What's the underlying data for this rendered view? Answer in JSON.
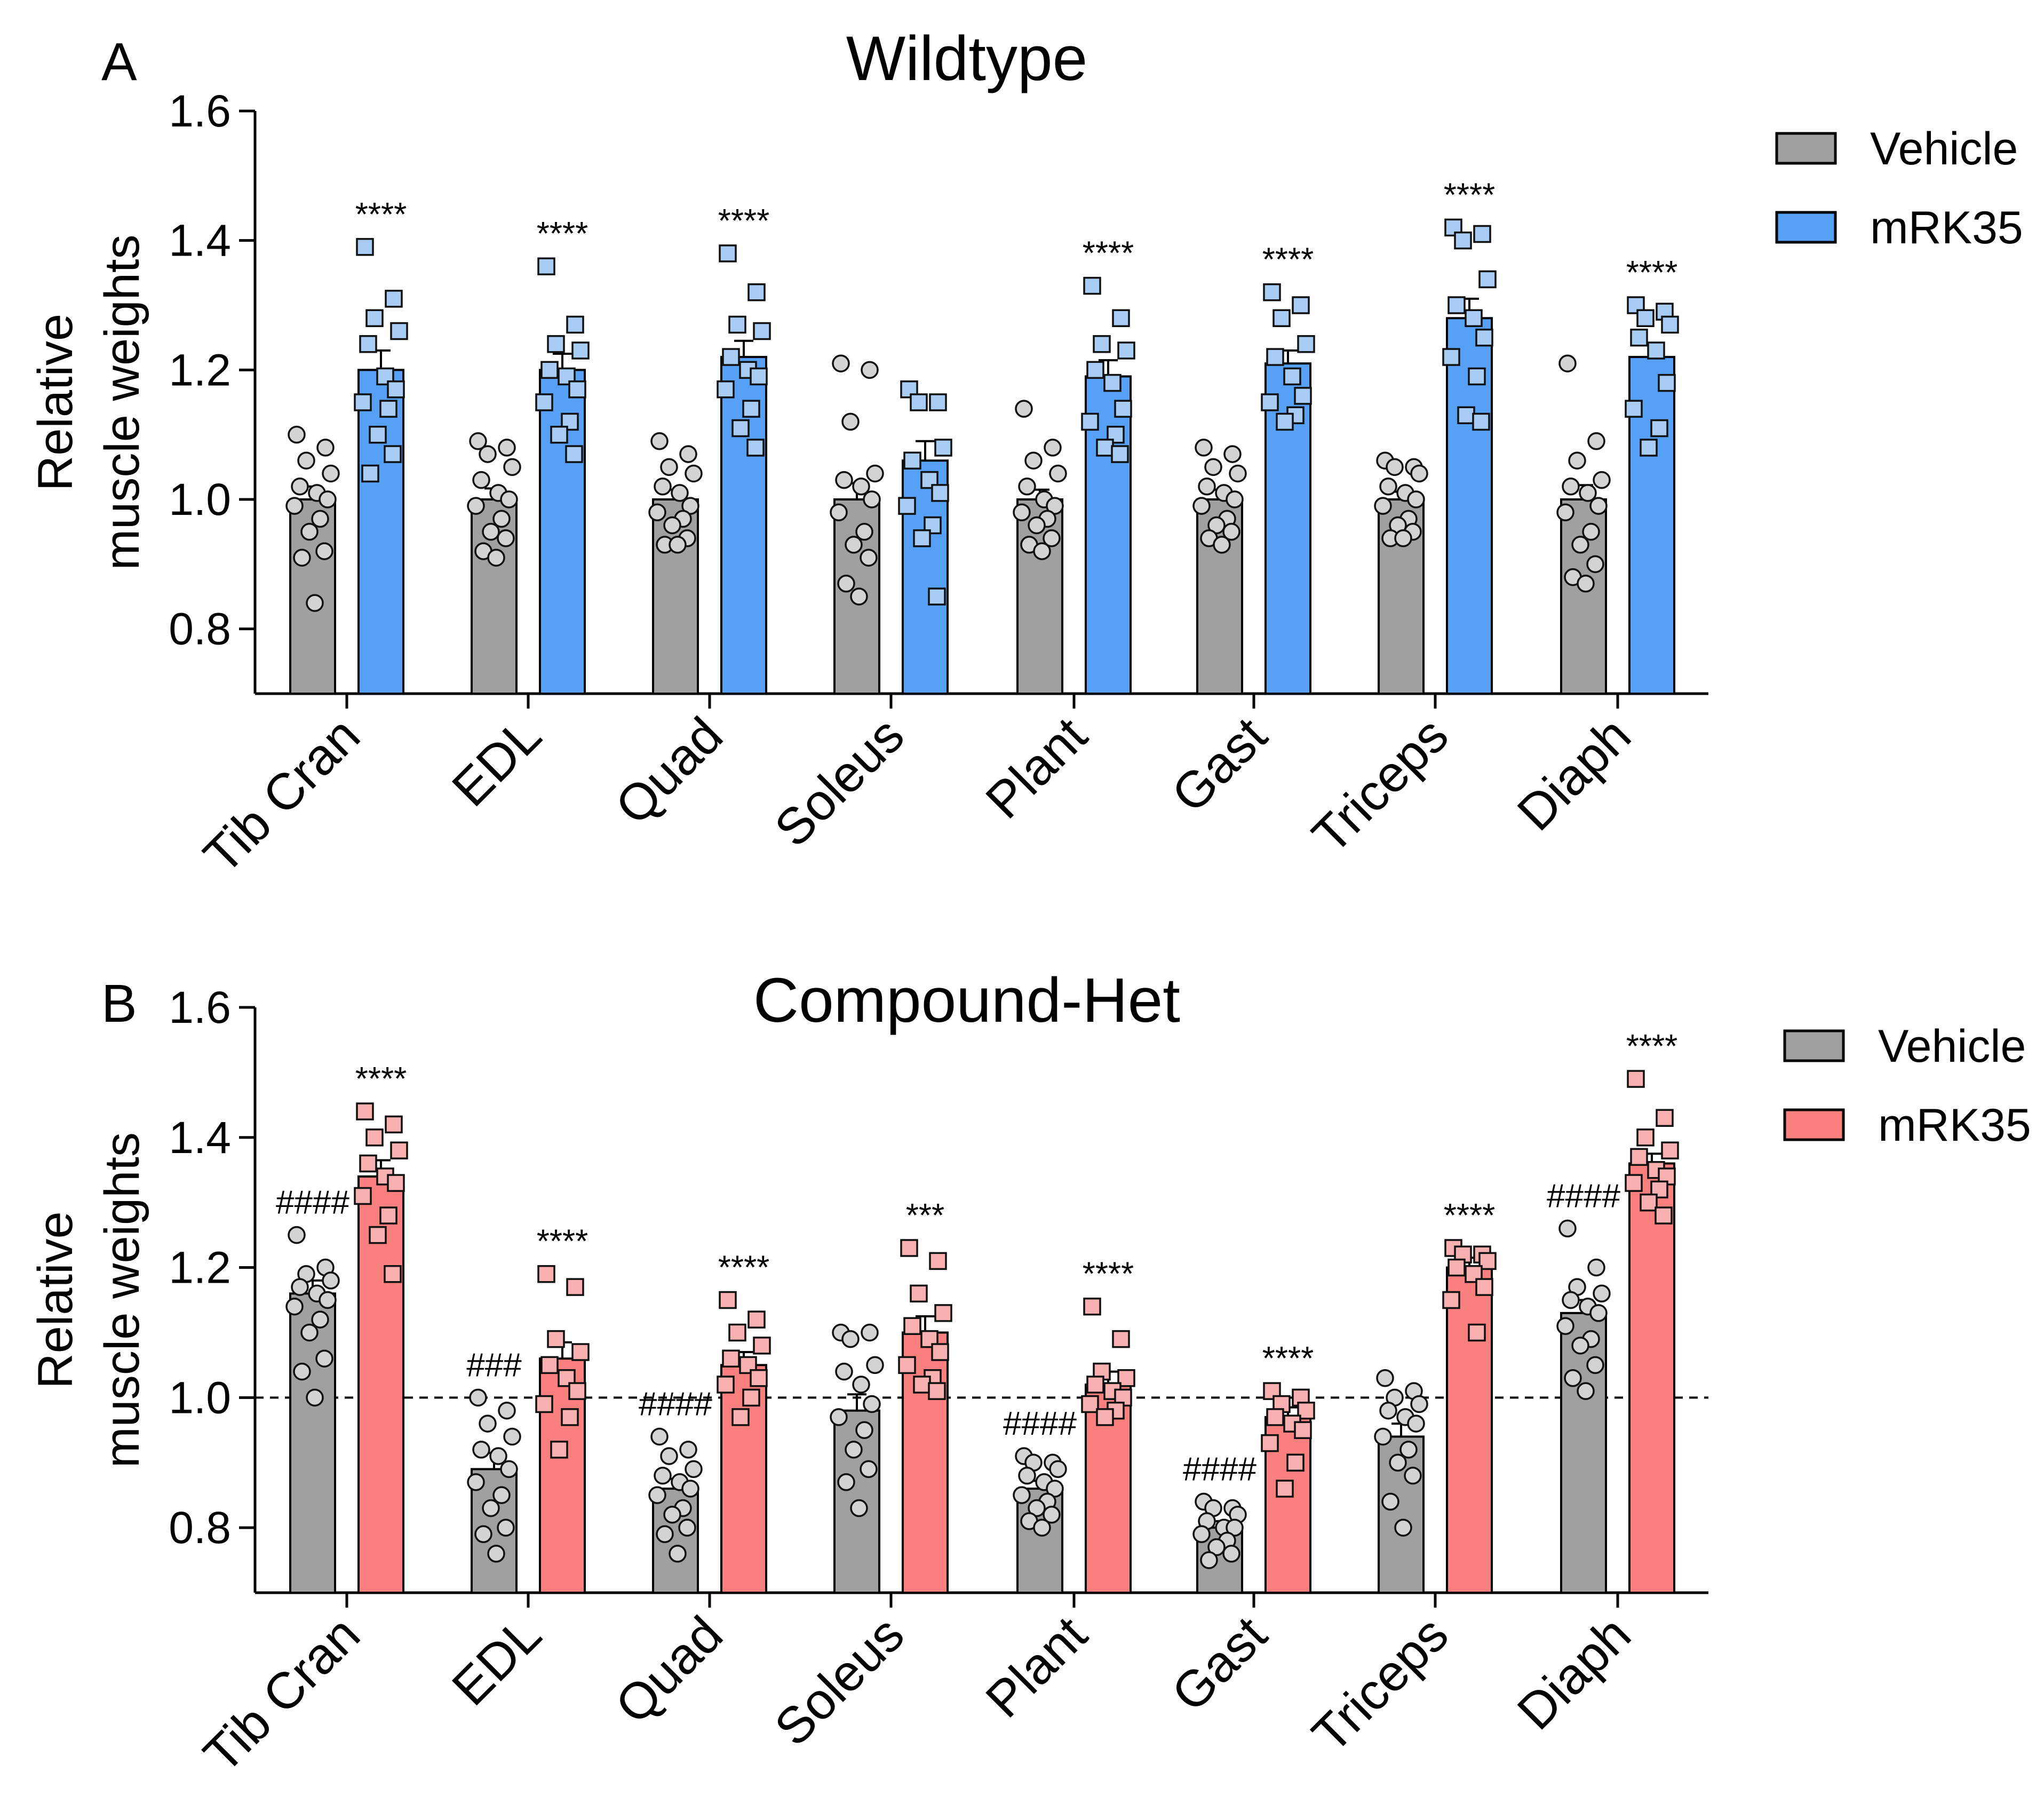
{
  "chart_data": [
    {
      "type": "bar",
      "panel_letter": "A",
      "title": "Wildtype",
      "ylabel_lines": [
        "Relative",
        "muscle weights"
      ],
      "ylim": [
        0.7,
        1.6
      ],
      "yticks": [
        "0.8",
        "1.0",
        "1.2",
        "1.4",
        "1.6"
      ],
      "ytick_values": [
        0.8,
        1.0,
        1.2,
        1.4,
        1.6
      ],
      "reference_line": null,
      "categories": [
        "Tib Cran",
        "EDL",
        "Quad",
        "Soleus",
        "Plant",
        "Gast",
        "Triceps",
        "Diaph"
      ],
      "series": [
        {
          "name": "Vehicle",
          "color": "#a0a0a0",
          "point_color": "#d3d3d3",
          "marker": "circle",
          "values": [
            1.0,
            1.0,
            1.0,
            1.0,
            1.0,
            1.0,
            1.0,
            1.0
          ],
          "sem": [
            0.02,
            0.017,
            0.015,
            0.025,
            0.015,
            0.015,
            0.012,
            0.022
          ],
          "points": [
            [
              1.1,
              1.08,
              1.06,
              1.04,
              1.02,
              1.01,
              1.0,
              0.99,
              0.97,
              0.95,
              0.92,
              0.91,
              0.84
            ],
            [
              1.09,
              1.08,
              1.07,
              1.05,
              1.03,
              1.01,
              1.0,
              0.99,
              0.97,
              0.95,
              0.94,
              0.92,
              0.91
            ],
            [
              1.09,
              1.07,
              1.05,
              1.04,
              1.02,
              1.01,
              0.99,
              0.98,
              0.97,
              0.96,
              0.94,
              0.93,
              0.93
            ],
            [
              1.21,
              1.2,
              1.12,
              1.04,
              1.03,
              1.02,
              1.0,
              0.98,
              0.95,
              0.93,
              0.91,
              0.87,
              0.85
            ],
            [
              1.14,
              1.08,
              1.06,
              1.04,
              1.02,
              1.0,
              0.99,
              0.98,
              0.97,
              0.96,
              0.94,
              0.93,
              0.92
            ],
            [
              1.08,
              1.07,
              1.05,
              1.04,
              1.02,
              1.01,
              1.0,
              0.99,
              0.97,
              0.96,
              0.95,
              0.94,
              0.93
            ],
            [
              1.06,
              1.05,
              1.05,
              1.04,
              1.02,
              1.01,
              1.0,
              0.99,
              0.97,
              0.96,
              0.95,
              0.94,
              0.94
            ],
            [
              1.21,
              1.09,
              1.06,
              1.03,
              1.02,
              1.01,
              0.99,
              0.98,
              0.95,
              0.93,
              0.9,
              0.88,
              0.87
            ]
          ]
        },
        {
          "name": "mRK35",
          "color": "#56a0f6",
          "point_color": "#a9ccf4",
          "marker": "square",
          "values": [
            1.2,
            1.2,
            1.22,
            1.06,
            1.19,
            1.21,
            1.28,
            1.22
          ],
          "sem": [
            0.03,
            0.025,
            0.025,
            0.03,
            0.025,
            0.02,
            0.03,
            0.02
          ],
          "points": [
            [
              1.39,
              1.31,
              1.28,
              1.26,
              1.24,
              1.19,
              1.17,
              1.15,
              1.14,
              1.1,
              1.07,
              1.04
            ],
            [
              1.36,
              1.27,
              1.24,
              1.23,
              1.2,
              1.19,
              1.17,
              1.15,
              1.12,
              1.1,
              1.07
            ],
            [
              1.38,
              1.32,
              1.27,
              1.26,
              1.22,
              1.2,
              1.19,
              1.17,
              1.14,
              1.11,
              1.08
            ],
            [
              1.17,
              1.15,
              1.15,
              1.08,
              1.06,
              1.03,
              1.01,
              0.99,
              0.96,
              0.94,
              0.85
            ],
            [
              1.33,
              1.28,
              1.24,
              1.23,
              1.2,
              1.18,
              1.14,
              1.12,
              1.1,
              1.08,
              1.07
            ],
            [
              1.32,
              1.3,
              1.28,
              1.24,
              1.22,
              1.19,
              1.16,
              1.15,
              1.13,
              1.12
            ],
            [
              1.42,
              1.41,
              1.4,
              1.34,
              1.3,
              1.28,
              1.25,
              1.22,
              1.19,
              1.13,
              1.12
            ],
            [
              1.3,
              1.29,
              1.28,
              1.27,
              1.25,
              1.23,
              1.18,
              1.14,
              1.11,
              1.08
            ]
          ]
        }
      ],
      "annotations": [
        {
          "category": 0,
          "series": 1,
          "text": "****"
        },
        {
          "category": 1,
          "series": 1,
          "text": "****"
        },
        {
          "category": 2,
          "series": 1,
          "text": "****"
        },
        {
          "category": 4,
          "series": 1,
          "text": "****"
        },
        {
          "category": 5,
          "series": 1,
          "text": "****"
        },
        {
          "category": 6,
          "series": 1,
          "text": "****"
        },
        {
          "category": 7,
          "series": 1,
          "text": "****"
        }
      ],
      "legend_position": "top-right"
    },
    {
      "type": "bar",
      "panel_letter": "B",
      "title": "Compound-Het",
      "ylabel_lines": [
        "Relative",
        "muscle weights"
      ],
      "ylim": [
        0.7,
        1.6
      ],
      "yticks": [
        "0.8",
        "1.0",
        "1.2",
        "1.4",
        "1.6"
      ],
      "ytick_values": [
        0.8,
        1.0,
        1.2,
        1.4,
        1.6
      ],
      "reference_line": 1.0,
      "categories": [
        "Tib Cran",
        "EDL",
        "Quad",
        "Soleus",
        "Plant",
        "Gast",
        "Triceps",
        "Diaph"
      ],
      "series": [
        {
          "name": "Vehicle",
          "color": "#a0a0a0",
          "point_color": "#d3d3d3",
          "marker": "circle",
          "values": [
            1.16,
            0.89,
            0.86,
            0.98,
            0.86,
            0.8,
            0.94,
            1.13
          ],
          "sem": [
            0.02,
            0.025,
            0.015,
            0.025,
            0.012,
            0.01,
            0.02,
            0.02
          ],
          "points": [
            [
              1.25,
              1.2,
              1.19,
              1.18,
              1.17,
              1.16,
              1.15,
              1.14,
              1.12,
              1.1,
              1.06,
              1.04,
              1.0
            ],
            [
              1.0,
              0.98,
              0.96,
              0.94,
              0.92,
              0.91,
              0.89,
              0.87,
              0.85,
              0.83,
              0.8,
              0.79,
              0.76
            ],
            [
              0.94,
              0.92,
              0.91,
              0.89,
              0.88,
              0.87,
              0.86,
              0.85,
              0.83,
              0.82,
              0.8,
              0.79,
              0.76
            ],
            [
              1.1,
              1.1,
              1.09,
              1.05,
              1.04,
              1.02,
              0.99,
              0.97,
              0.95,
              0.92,
              0.89,
              0.87,
              0.83
            ],
            [
              0.91,
              0.9,
              0.9,
              0.89,
              0.88,
              0.87,
              0.86,
              0.85,
              0.84,
              0.83,
              0.82,
              0.81,
              0.8
            ],
            [
              0.84,
              0.83,
              0.83,
              0.82,
              0.81,
              0.8,
              0.8,
              0.79,
              0.78,
              0.77,
              0.76,
              0.75
            ],
            [
              1.03,
              1.01,
              1.0,
              0.99,
              0.98,
              0.97,
              0.96,
              0.94,
              0.92,
              0.9,
              0.88,
              0.84,
              0.8
            ],
            [
              1.26,
              1.2,
              1.17,
              1.16,
              1.15,
              1.14,
              1.13,
              1.11,
              1.09,
              1.08,
              1.05,
              1.03,
              1.01
            ]
          ]
        },
        {
          "name": "mRK35",
          "color": "#fa8080",
          "point_color": "#f8b0b0",
          "marker": "square",
          "values": [
            1.34,
            1.06,
            1.05,
            1.1,
            1.02,
            0.97,
            1.2,
            1.36
          ],
          "sem": [
            0.025,
            0.025,
            0.02,
            0.025,
            0.02,
            0.015,
            0.015,
            0.015
          ],
          "points": [
            [
              1.44,
              1.42,
              1.4,
              1.38,
              1.36,
              1.34,
              1.33,
              1.31,
              1.28,
              1.25,
              1.19
            ],
            [
              1.19,
              1.17,
              1.09,
              1.07,
              1.05,
              1.03,
              1.01,
              0.99,
              0.97,
              0.92
            ],
            [
              1.15,
              1.12,
              1.1,
              1.08,
              1.06,
              1.05,
              1.03,
              1.02,
              1.0,
              0.97
            ],
            [
              1.23,
              1.21,
              1.16,
              1.13,
              1.11,
              1.09,
              1.07,
              1.05,
              1.03,
              1.02,
              1.01
            ],
            [
              1.14,
              1.09,
              1.04,
              1.03,
              1.02,
              1.01,
              1.0,
              0.99,
              0.98,
              0.97
            ],
            [
              1.01,
              1.0,
              0.99,
              0.98,
              0.97,
              0.96,
              0.95,
              0.93,
              0.9,
              0.86
            ],
            [
              1.23,
              1.22,
              1.22,
              1.21,
              1.2,
              1.19,
              1.17,
              1.15,
              1.1
            ],
            [
              1.49,
              1.43,
              1.4,
              1.38,
              1.37,
              1.35,
              1.34,
              1.33,
              1.32,
              1.3,
              1.28
            ]
          ]
        }
      ],
      "annotations": [
        {
          "category": 0,
          "series": 0,
          "text": "####"
        },
        {
          "category": 0,
          "series": 1,
          "text": "****"
        },
        {
          "category": 1,
          "series": 0,
          "text": "###"
        },
        {
          "category": 1,
          "series": 1,
          "text": "****"
        },
        {
          "category": 2,
          "series": 0,
          "text": "####"
        },
        {
          "category": 2,
          "series": 1,
          "text": "****"
        },
        {
          "category": 3,
          "series": 1,
          "text": "***"
        },
        {
          "category": 4,
          "series": 0,
          "text": "####"
        },
        {
          "category": 4,
          "series": 1,
          "text": "****"
        },
        {
          "category": 5,
          "series": 0,
          "text": "####"
        },
        {
          "category": 5,
          "series": 1,
          "text": "****"
        },
        {
          "category": 6,
          "series": 1,
          "text": "****"
        },
        {
          "category": 7,
          "series": 0,
          "text": "####"
        },
        {
          "category": 7,
          "series": 1,
          "text": "****"
        }
      ],
      "legend_position": "top-right"
    }
  ]
}
